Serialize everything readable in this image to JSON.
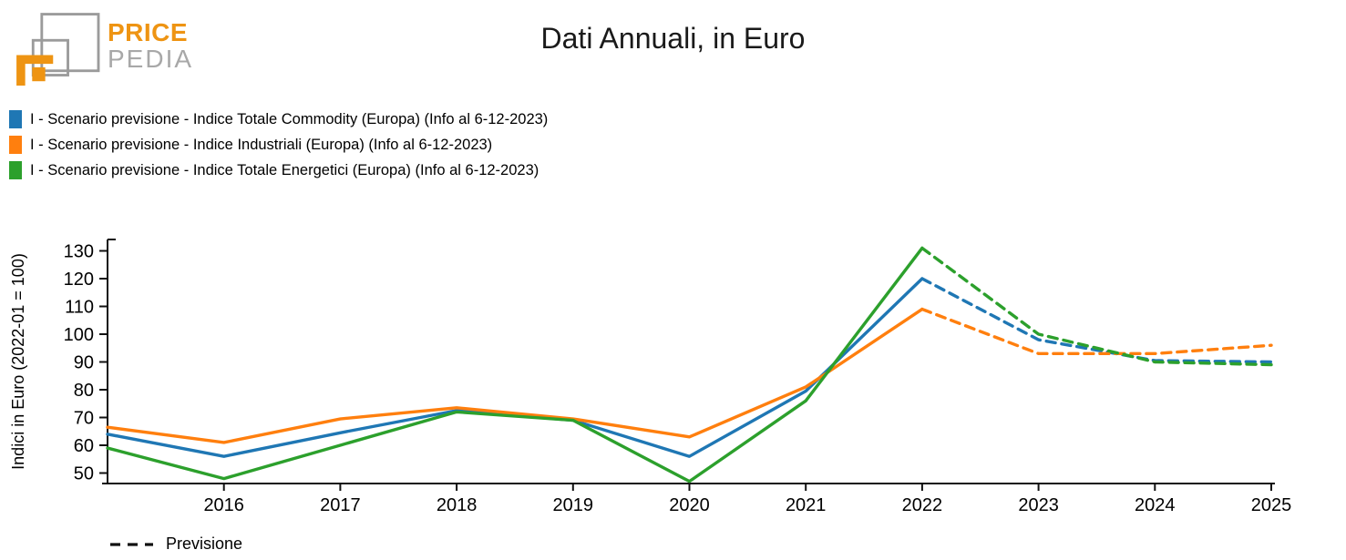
{
  "header": {
    "logo": {
      "line1": "PRICE",
      "line2": "PEDIA",
      "orange": "#ee9413",
      "gray": "#9b9b9b"
    },
    "title": "Dati Annuali, in Euro"
  },
  "chart_data": {
    "type": "line",
    "title": "Dati Annuali, in Euro",
    "ylabel": "Indici in Euro (2022-01 = 100)",
    "xlabel": "",
    "x": [
      2015,
      2016,
      2017,
      2018,
      2019,
      2020,
      2021,
      2022,
      2023,
      2024,
      2025
    ],
    "x_ticks": [
      2016,
      2017,
      2018,
      2019,
      2020,
      2021,
      2022,
      2023,
      2024,
      2025
    ],
    "y_ticks": [
      50,
      60,
      70,
      80,
      90,
      100,
      110,
      120,
      130
    ],
    "ylim": [
      46,
      133.5
    ],
    "xlim": [
      2015,
      2025
    ],
    "grid": false,
    "legend_position": "top-left",
    "forecast_start": 2022,
    "forecast_style": "dashed",
    "forecast_legend": "Previsione",
    "series": [
      {
        "name": "I - Scenario previsione - Indice Totale Commodity (Europa) (Info al 6-12-2023)",
        "color": "#1f77b4",
        "values": [
          64,
          56,
          64.5,
          72.5,
          69,
          56,
          79.5,
          120,
          98,
          90.5,
          90
        ]
      },
      {
        "name": "I - Scenario previsione - Indice Industriali (Europa) (Info al 6-12-2023)",
        "color": "#ff7f0e",
        "values": [
          66.5,
          61,
          69.5,
          73.5,
          69.5,
          63,
          81,
          109,
          93,
          93,
          96
        ]
      },
      {
        "name": "I - Scenario previsione - Indice Totale Energetici (Europa) (Info al 6-12-2023)",
        "color": "#2ca02c",
        "values": [
          59,
          48,
          60,
          72,
          69,
          47,
          76,
          131,
          100,
          90,
          89
        ]
      }
    ]
  }
}
